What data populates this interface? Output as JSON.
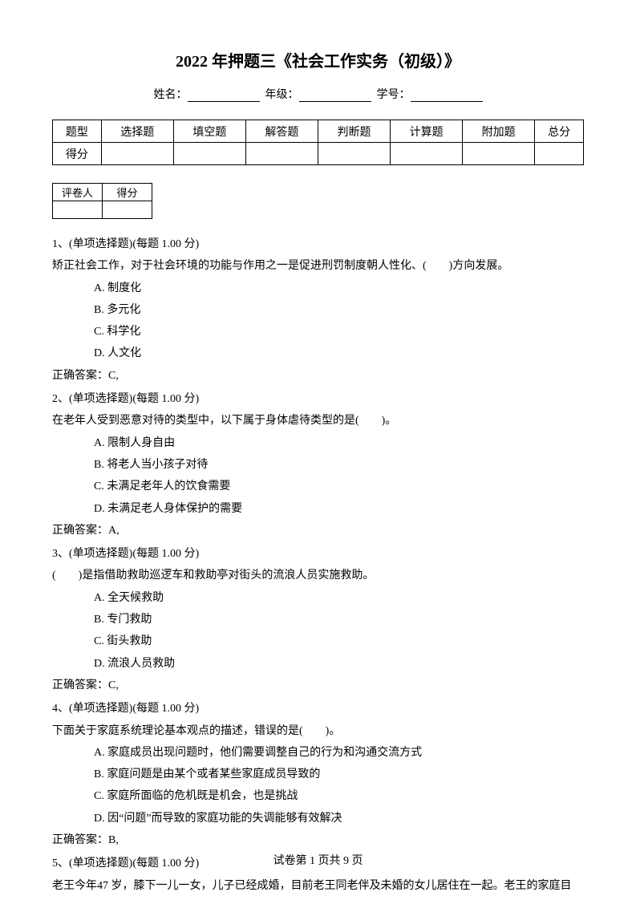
{
  "title": "2022 年押题三《社会工作实务（初级）》",
  "info": {
    "name_label": "姓名：",
    "grade_label": "年级：",
    "id_label": "学号："
  },
  "score_table": {
    "headers": [
      "题型",
      "选择题",
      "填空题",
      "解答题",
      "判断题",
      "计算题",
      "附加题",
      "总分"
    ],
    "row_label": "得分"
  },
  "grader_table": {
    "headers": [
      "评卷人",
      "得分"
    ]
  },
  "questions": [
    {
      "num": "1、(单项选择题)(每题 1.00 分)",
      "stem": "矫正社会工作，对于社会环境的功能与作用之一是促进刑罚制度朝人性化、(　　)方向发展。",
      "options": [
        "A. 制度化",
        "B. 多元化",
        "C. 科学化",
        "D. 人文化"
      ],
      "answer": "正确答案：C,"
    },
    {
      "num": "2、(单项选择题)(每题 1.00 分)",
      "stem": "在老年人受到恶意对待的类型中，以下属于身体虐待类型的是(　　)。",
      "options": [
        "A. 限制人身自由",
        "B. 将老人当小孩子对待",
        "C. 未满足老年人的饮食需要",
        "D. 未满足老人身体保护的需要"
      ],
      "answer": "正确答案：A,"
    },
    {
      "num": "3、(单项选择题)(每题 1.00 分)",
      "stem": "(　　)是指借助救助巡逻车和救助亭对街头的流浪人员实施救助。",
      "options": [
        "A. 全天候救助",
        "B. 专门救助",
        "C. 街头救助",
        "D. 流浪人员救助"
      ],
      "answer": "正确答案：C,"
    },
    {
      "num": "4、(单项选择题)(每题 1.00 分)",
      "stem": "下面关于家庭系统理论基本观点的描述，错误的是(　　)。",
      "options": [
        "A. 家庭成员出现问题时，他们需要调整自己的行为和沟通交流方式",
        "B. 家庭问题是由某个或者某些家庭成员导致的",
        "C. 家庭所面临的危机既是机会，也是挑战",
        "D. 因“问题”而导致的家庭功能的失调能够有效解决"
      ],
      "answer": "正确答案：B,"
    },
    {
      "num": "5、(单项选择题)(每题 1.00 分)",
      "stem": "老王今年47 岁，膝下一儿一女，儿子已经成婚，目前老王同老伴及未婚的女儿居住在一起。老王的家庭目",
      "options": [],
      "answer": ""
    }
  ],
  "footer": {
    "text_prefix": "试卷第 ",
    "page_current": "1",
    "text_mid": " 页共 ",
    "page_total": "9",
    "text_suffix": " 页"
  }
}
